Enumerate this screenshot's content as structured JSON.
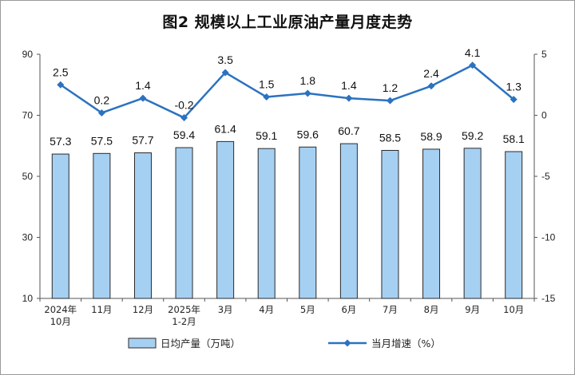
{
  "title": "图2  规模以上工业原油产量月度走势",
  "chart_data": {
    "type": "bar",
    "categories": [
      [
        "2024年",
        "10月"
      ],
      [
        "11月"
      ],
      [
        "12月"
      ],
      [
        "2025年",
        "1-2月"
      ],
      [
        "3月"
      ],
      [
        "4月"
      ],
      [
        "5月"
      ],
      [
        "6月"
      ],
      [
        "7月"
      ],
      [
        "8月"
      ],
      [
        "9月"
      ],
      [
        "10月"
      ]
    ],
    "series": [
      {
        "name": "日均产量（万吨）",
        "type": "bar",
        "axis": "left",
        "values": [
          57.3,
          57.5,
          57.7,
          59.4,
          61.4,
          59.1,
          59.6,
          60.7,
          58.5,
          58.9,
          59.2,
          58.1
        ],
        "labels": [
          "57.3",
          "57.5",
          "57.7",
          "59.4",
          "61.4",
          "59.1",
          "59.6",
          "60.7",
          "58.5",
          "58.9",
          "59.2",
          "58.1"
        ]
      },
      {
        "name": "当月增速（%）",
        "type": "line",
        "axis": "right",
        "values": [
          2.5,
          0.2,
          1.4,
          -0.2,
          3.5,
          1.5,
          1.8,
          1.4,
          1.2,
          2.4,
          4.1,
          1.3
        ],
        "labels": [
          "2.5",
          "0.2",
          "1.4",
          "-0.2",
          "3.5",
          "1.5",
          "1.8",
          "1.4",
          "1.2",
          "2.4",
          "4.1",
          "1.3"
        ]
      }
    ],
    "left_axis": {
      "ylim": [
        10,
        90
      ],
      "ticks": [
        "10",
        "30",
        "50",
        "70",
        "90"
      ]
    },
    "right_axis": {
      "ylim": [
        -15,
        5
      ],
      "ticks": [
        "-15",
        "-10",
        "-5",
        "0",
        "5"
      ]
    },
    "legend_position": "bottom",
    "colors": {
      "bar_fill": "#a6d0f2",
      "bar_stroke": "#2a2a2a",
      "line": "#2b72c0"
    }
  }
}
